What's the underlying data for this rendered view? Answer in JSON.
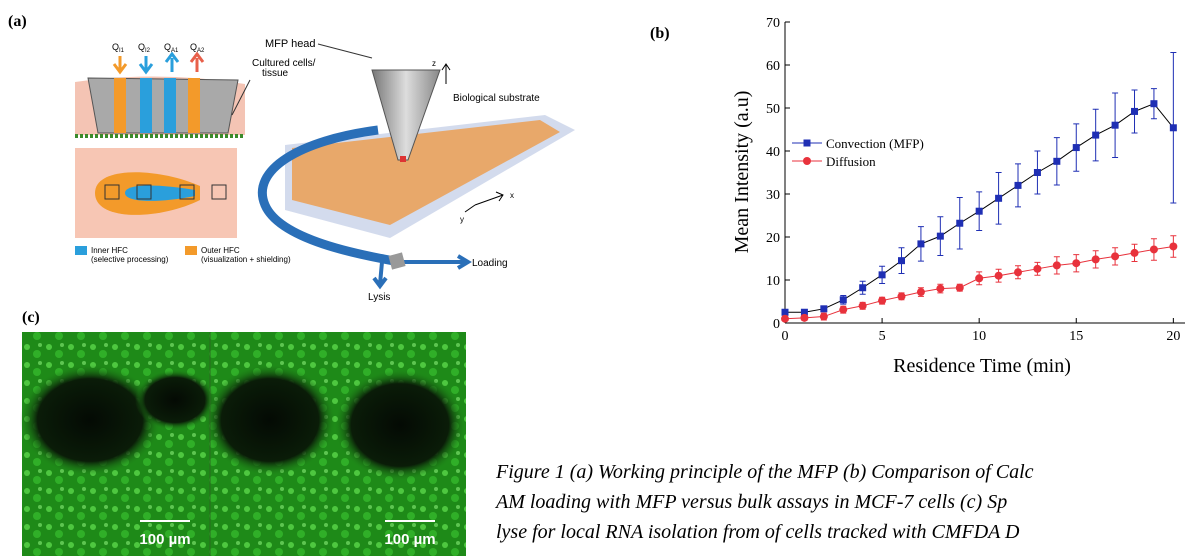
{
  "panel_labels": [
    "(a)",
    "(b)",
    "(c)"
  ],
  "diagram": {
    "flows": [
      {
        "main": "Q",
        "sub": "I1"
      },
      {
        "main": "Q",
        "sub": "I2"
      },
      {
        "main": "Q",
        "sub": "A1"
      },
      {
        "main": "Q",
        "sub": "A2"
      }
    ],
    "mfp_head": "MFP head",
    "cells": [
      "Cultured cells/",
      "tissue"
    ],
    "substrate": "Biological substrate",
    "axes": [
      "z",
      "x",
      "y"
    ],
    "inner": [
      "Inner HFC",
      "(selective processing)"
    ],
    "outer": [
      "Outer HFC",
      "(visualization + shielding)"
    ],
    "loading": "Loading",
    "lysis": "Lysis"
  },
  "chart_data": {
    "type": "line",
    "x": [
      0,
      1,
      2,
      3,
      4,
      5,
      6,
      7,
      8,
      9,
      10,
      11,
      12,
      13,
      14,
      15,
      16,
      17,
      18,
      19,
      20
    ],
    "series": [
      {
        "name": "Convection (MFP)",
        "color": "#1f2fb4",
        "marker": "square",
        "values": [
          2.5,
          2.5,
          3.3,
          5.4,
          8.2,
          11.2,
          14.5,
          18.4,
          20.2,
          23.2,
          26,
          29,
          32,
          35,
          37.6,
          40.8,
          43.7,
          46,
          49.2,
          51,
          45.4
        ],
        "errors": [
          0.5,
          0.5,
          0.5,
          1,
          1.5,
          2,
          3,
          4,
          4.5,
          6,
          4.5,
          6,
          5,
          5,
          5.5,
          5.5,
          6,
          7.5,
          5,
          3.5,
          17.5
        ]
      },
      {
        "name": "Diffusion",
        "color": "#e8323c",
        "marker": "circle",
        "values": [
          1,
          1.2,
          1.5,
          3.1,
          4,
          5.2,
          6.2,
          7.2,
          8,
          8.2,
          10.4,
          11,
          11.8,
          12.6,
          13.4,
          13.9,
          14.8,
          15.5,
          16.3,
          17.1,
          17.8
        ],
        "errors": [
          0.5,
          0.6,
          0.8,
          0.8,
          0.8,
          0.8,
          0.8,
          1,
          1,
          0.8,
          1.5,
          1.5,
          1.5,
          1.5,
          2,
          2,
          2,
          2,
          2,
          2.5,
          2.5
        ]
      }
    ],
    "xlabel": "Residence Time (min)",
    "ylabel": "Mean Intensity (a.u)",
    "xlim": [
      0,
      20.6
    ],
    "ylim": [
      0,
      70
    ],
    "xticks": [
      0,
      5,
      10,
      15,
      20
    ],
    "yticks": [
      0,
      10,
      20,
      30,
      40,
      50,
      60,
      70
    ]
  },
  "image": {
    "scale_bars": [
      "100 µm",
      "100 µm"
    ]
  },
  "caption": [
    "Figure 1 (a) Working principle of the MFP (b) Comparison of Calc",
    "AM loading with MFP versus bulk assays in MCF-7 cells (c) Sp",
    "lyse for local RNA isolation from of cells tracked with CMFDA D"
  ]
}
